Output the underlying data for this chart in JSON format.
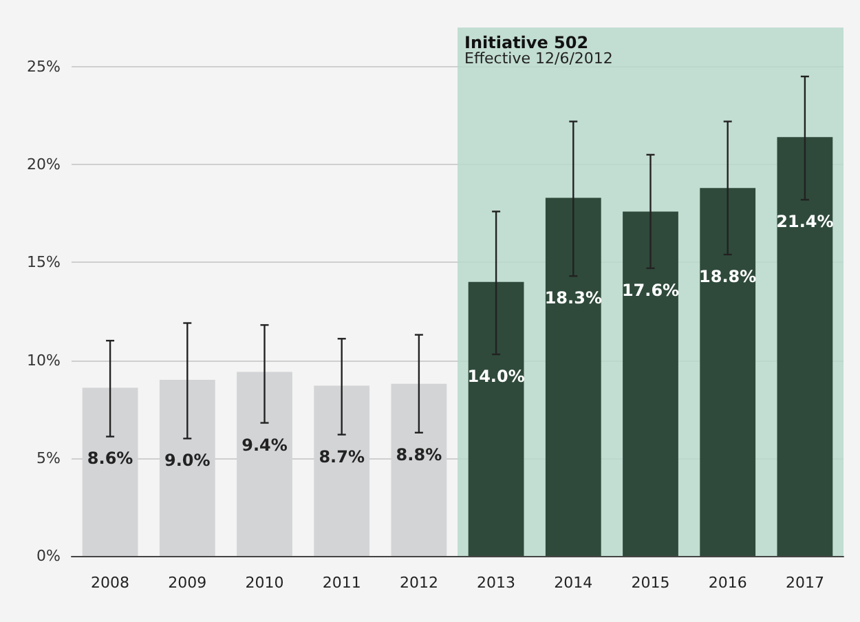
{
  "chart_data": {
    "type": "bar",
    "categories": [
      "2008",
      "2009",
      "2010",
      "2011",
      "2012",
      "2013",
      "2014",
      "2015",
      "2016",
      "2017"
    ],
    "values": [
      8.6,
      9.0,
      9.4,
      8.7,
      8.8,
      14.0,
      18.3,
      17.6,
      18.8,
      21.4
    ],
    "value_labels": [
      "8.6%",
      "9.0%",
      "9.4%",
      "8.7%",
      "8.8%",
      "14.0%",
      "18.3%",
      "17.6%",
      "18.8%",
      "21.4%"
    ],
    "colors": [
      "#d3d4d6",
      "#d3d4d6",
      "#d3d4d6",
      "#d3d4d6",
      "#d3d4d6",
      "#2f4a3b",
      "#2f4a3b",
      "#2f4a3b",
      "#2f4a3b",
      "#2f4a3b"
    ],
    "errors": [
      [
        6.1,
        11.0
      ],
      [
        6.0,
        11.9
      ],
      [
        6.8,
        11.8
      ],
      [
        6.2,
        11.1
      ],
      [
        6.3,
        11.3
      ],
      [
        10.3,
        17.6
      ],
      [
        14.3,
        22.2
      ],
      [
        14.7,
        20.5
      ],
      [
        15.4,
        22.2
      ],
      [
        18.2,
        24.5
      ]
    ],
    "ylim": [
      0,
      27
    ],
    "yticks": [
      {
        "value": 0,
        "label": "0%"
      },
      {
        "value": 5,
        "label": "5%"
      },
      {
        "value": 10,
        "label": "10%"
      },
      {
        "value": 15,
        "label": "15%"
      },
      {
        "value": 20,
        "label": "20%"
      },
      {
        "value": 25,
        "label": "25%"
      }
    ],
    "grid": "y",
    "bands": [
      {
        "axis": "x",
        "from": "2013",
        "to": "2017",
        "label": "Initiative 502\nEffective 12/6/2012",
        "color": "#b9d8cb"
      }
    ]
  }
}
